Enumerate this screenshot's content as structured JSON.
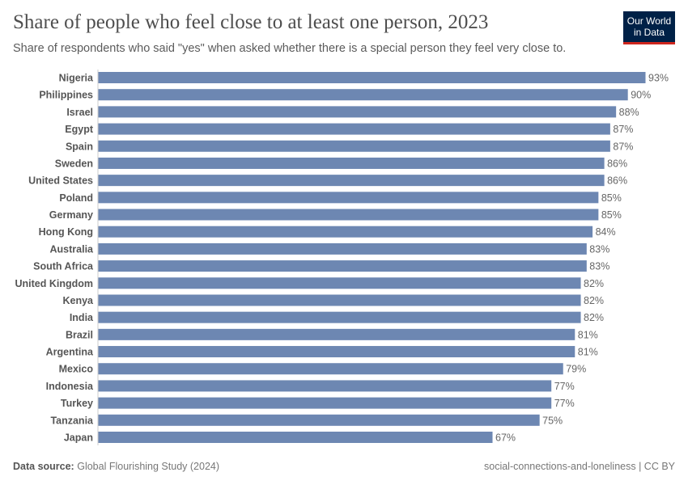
{
  "title": "Share of people who feel close to at least one person, 2023",
  "subtitle": "Share of respondents who said \"yes\" when asked whether there is a special person they feel very close to.",
  "logo": {
    "line1": "Our World",
    "line2": "in Data",
    "bg": "#002147",
    "accent": "#ce261e"
  },
  "footer": {
    "source_label": "Data source:",
    "source_text": "Global Flourishing Study (2024)",
    "license": "social-connections-and-loneliness | CC BY"
  },
  "chart_data": {
    "type": "bar",
    "orientation": "horizontal",
    "title": "Share of people who feel close to at least one person, 2023",
    "unit": "%",
    "bar_color": "#6d87b2",
    "xlim": [
      0,
      93
    ],
    "categories": [
      "Nigeria",
      "Philippines",
      "Israel",
      "Egypt",
      "Spain",
      "Sweden",
      "United States",
      "Poland",
      "Germany",
      "Hong Kong",
      "Australia",
      "South Africa",
      "United Kingdom",
      "Kenya",
      "India",
      "Brazil",
      "Argentina",
      "Mexico",
      "Indonesia",
      "Turkey",
      "Tanzania",
      "Japan"
    ],
    "values": [
      93,
      90,
      88,
      87,
      87,
      86,
      86,
      85,
      85,
      84,
      83,
      83,
      82,
      82,
      82,
      81,
      81,
      79,
      77,
      77,
      75,
      67
    ]
  }
}
